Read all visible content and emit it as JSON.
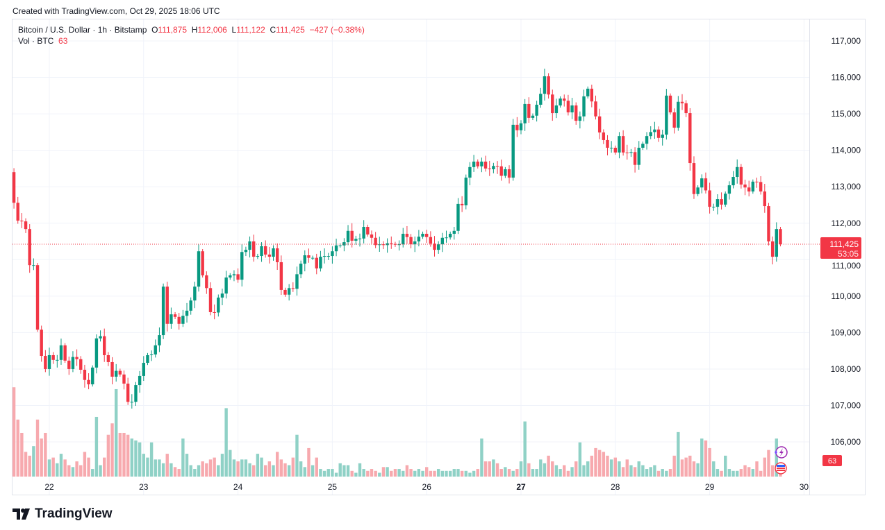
{
  "header": {
    "created": "Created with TradingView.com, Oct 29, 2025 18:06 UTC"
  },
  "legend": {
    "symbol": "Bitcoin / U.S. Dollar · 1h · Bitstamp",
    "o_label": "O",
    "o": "111,875",
    "h_label": "H",
    "h": "112,006",
    "l_label": "L",
    "l": "111,122",
    "c_label": "C",
    "c": "111,425",
    "change": "−427 (−0.38%)",
    "vol_label": "Vol · BTC",
    "vol": "63"
  },
  "price_label": {
    "price": "111,425",
    "countdown": "53:05"
  },
  "volume_label": "63",
  "logo": "TradingView",
  "colors": {
    "up": "#089981",
    "down": "#f23645",
    "up_vol": "#8fd1c6",
    "down_vol": "#f7a9ae"
  },
  "chart_data": {
    "type": "candlestick",
    "title": "Bitcoin / U.S. Dollar · 1h · Bitstamp",
    "interval": "1h",
    "last_bar": "Oct 29 18:00",
    "ylim": [
      105200,
      117300
    ],
    "y_ticks": [
      "117,000",
      "116,000",
      "115,000",
      "114,000",
      "113,000",
      "112,000",
      "111,000",
      "110,000",
      "109,000",
      "108,000",
      "107,000",
      "106,000"
    ],
    "y_tick_values": [
      117000,
      116000,
      115000,
      114000,
      113000,
      112000,
      111000,
      110000,
      109000,
      108000,
      107000,
      106000
    ],
    "x_ticks": [
      "22",
      "23",
      "24",
      "25",
      "26",
      "27",
      "28",
      "29",
      "30"
    ],
    "x_tick_bold": "27",
    "current_price": 111425,
    "first_open_k": 112.2,
    "close_k": [
      113.4,
      112.56,
      112.07,
      112.05,
      111.84,
      110.85,
      110.85,
      109.08,
      108.36,
      108.0,
      108.38,
      108.25,
      108.25,
      108.65,
      108.23,
      108.0,
      108.33,
      108.27,
      107.98,
      107.7,
      107.58,
      108.04,
      108.84,
      108.9,
      108.38,
      108.19,
      107.79,
      107.95,
      107.85,
      107.6,
      107.1,
      107.1,
      107.56,
      107.81,
      108.17,
      108.38,
      108.4,
      108.65,
      108.93,
      110.26,
      109.24,
      109.5,
      109.43,
      109.24,
      109.46,
      109.6,
      109.88,
      110.26,
      111.23,
      110.57,
      110.22,
      109.56,
      109.55,
      109.96,
      110.07,
      110.51,
      110.57,
      110.6,
      110.45,
      111.21,
      111.27,
      111.5,
      111.08,
      111.1,
      111.37,
      111.14,
      111.08,
      111.31,
      110.93,
      110.17,
      110.04,
      110.22,
      110.2,
      110.6,
      110.89,
      111.12,
      111.05,
      111.05,
      110.76,
      111.08,
      111.1,
      111.1,
      111.23,
      111.39,
      111.39,
      111.48,
      111.79,
      111.52,
      111.57,
      111.58,
      111.9,
      111.69,
      111.6,
      111.4,
      111.42,
      111.4,
      111.45,
      111.43,
      111.41,
      111.42,
      111.71,
      111.62,
      111.42,
      111.5,
      111.63,
      111.71,
      111.62,
      111.44,
      111.27,
      111.42,
      111.6,
      111.61,
      111.71,
      111.79,
      112.53,
      112.49,
      113.25,
      113.54,
      113.69,
      113.56,
      113.69,
      113.5,
      113.48,
      113.57,
      113.56,
      113.3,
      113.48,
      113.25,
      114.7,
      114.55,
      114.74,
      115.27,
      114.89,
      114.95,
      115.25,
      115.55,
      116.03,
      115.53,
      115.02,
      115.23,
      115.42,
      115.36,
      115.04,
      115.23,
      114.81,
      114.93,
      115.48,
      115.69,
      115.34,
      114.93,
      114.49,
      114.28,
      114.07,
      114.07,
      113.94,
      114.39,
      113.94,
      113.93,
      113.95,
      113.6,
      114.07,
      114.18,
      114.39,
      114.5,
      114.57,
      114.34,
      114.43,
      115.5,
      115.04,
      114.62,
      115.33,
      115.29,
      115.02,
      113.65,
      112.8,
      112.98,
      113.23,
      112.9,
      112.45,
      112.45,
      112.66,
      112.51,
      112.81,
      113.04,
      113.27,
      113.54,
      113.06,
      112.98,
      112.87,
      113.14,
      113.13,
      112.87,
      112.47,
      111.5,
      111.08,
      111.84,
      111.425
    ],
    "volume_btc": [
      600,
      470,
      300,
      230,
      130,
      110,
      160,
      300,
      200,
      230,
      90,
      100,
      70,
      120,
      90,
      60,
      50,
      80,
      60,
      130,
      100,
      40,
      314,
      60,
      100,
      220,
      280,
      460,
      230,
      230,
      220,
      200,
      190,
      180,
      120,
      100,
      180,
      90,
      90,
      70,
      120,
      70,
      50,
      40,
      200,
      120,
      60,
      40,
      60,
      80,
      70,
      90,
      100,
      60,
      120,
      360,
      140,
      90,
      80,
      90,
      90,
      70,
      60,
      120,
      100,
      60,
      80,
      60,
      130,
      90,
      70,
      60,
      100,
      220,
      80,
      50,
      150,
      60,
      100,
      40,
      30,
      40,
      40,
      20,
      70,
      60,
      60,
      30,
      20,
      70,
      40,
      30,
      40,
      30,
      20,
      50,
      50,
      30,
      40,
      40,
      30,
      60,
      40,
      30,
      40,
      30,
      50,
      30,
      30,
      40,
      30,
      30,
      30,
      40,
      40,
      30,
      30,
      20,
      30,
      40,
      200,
      80,
      80,
      90,
      70,
      40,
      50,
      40,
      30,
      40,
      80,
      290,
      70,
      40,
      40,
      90,
      70,
      110,
      80,
      60,
      40,
      60,
      30,
      50,
      80,
      180,
      60,
      80,
      110,
      150,
      140,
      130,
      110,
      90,
      100,
      80,
      50,
      90,
      60,
      50,
      80,
      60,
      40,
      50,
      60,
      30,
      40,
      30,
      40,
      110,
      234,
      90,
      100,
      110,
      80,
      70,
      200,
      190,
      150,
      80,
      40,
      30,
      110,
      40,
      30,
      30,
      40,
      60,
      50,
      40,
      80,
      30,
      100,
      140,
      60,
      200,
      63
    ]
  }
}
